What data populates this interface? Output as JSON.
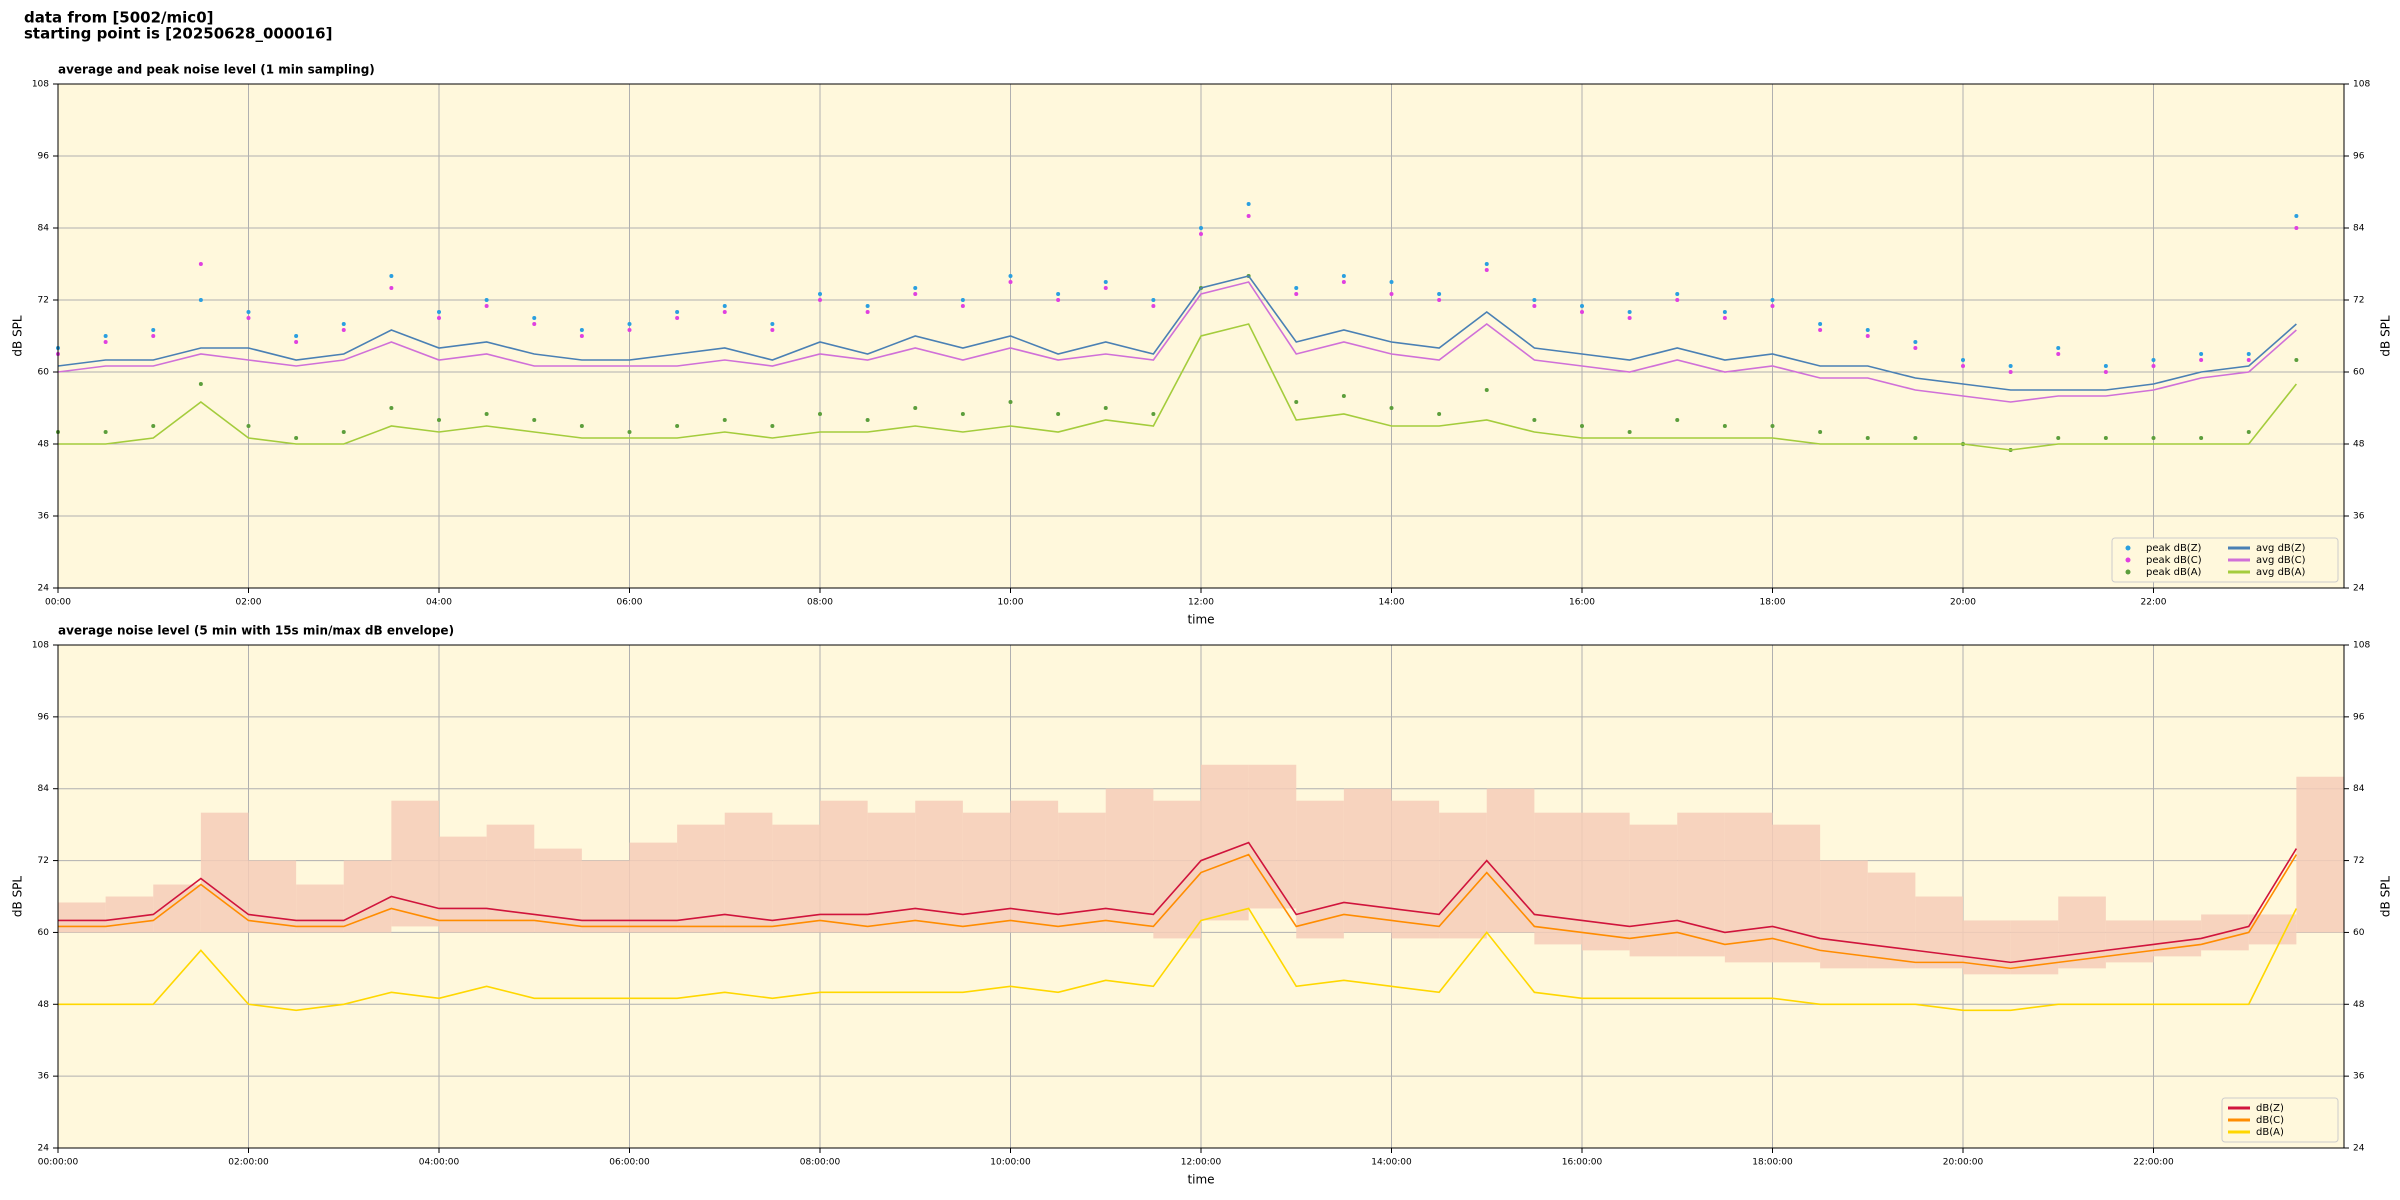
{
  "header": {
    "lines": [
      "data from [5002/mic0]",
      "starting point is [20250628_000016]"
    ]
  },
  "chart_data": [
    {
      "type": "line",
      "title": "average and peak noise level (1 min sampling)",
      "x_label": "time",
      "y_label": "dB SPL",
      "x": [
        0,
        0.5,
        1,
        1.5,
        2,
        2.5,
        3,
        3.5,
        4,
        4.5,
        5,
        5.5,
        6,
        6.5,
        7,
        7.5,
        8,
        8.5,
        9,
        9.5,
        10,
        10.5,
        11,
        11.5,
        12,
        12.5,
        13,
        13.5,
        14,
        14.5,
        15,
        15.5,
        16,
        16.5,
        17,
        17.5,
        18,
        18.5,
        19,
        19.5,
        20,
        20.5,
        21,
        21.5,
        22,
        22.5,
        23,
        23.5
      ],
      "xlim": [
        0,
        24
      ],
      "xticks": [
        {
          "value": 0,
          "label": "00:00"
        },
        {
          "value": 2,
          "label": "02:00"
        },
        {
          "value": 4,
          "label": "04:00"
        },
        {
          "value": 6,
          "label": "06:00"
        },
        {
          "value": 8,
          "label": "08:00"
        },
        {
          "value": 10,
          "label": "10:00"
        },
        {
          "value": 12,
          "label": "12:00"
        },
        {
          "value": 14,
          "label": "14:00"
        },
        {
          "value": 16,
          "label": "16:00"
        },
        {
          "value": 18,
          "label": "18:00"
        },
        {
          "value": 20,
          "label": "20:00"
        },
        {
          "value": 22,
          "label": "22:00"
        }
      ],
      "ylim": [
        24,
        108
      ],
      "yticks": [
        24,
        36,
        48,
        60,
        72,
        84,
        96,
        108
      ],
      "grid": true,
      "legend": "lower right",
      "legend_columns": 2,
      "series": [
        {
          "name": "peak dB(Z)",
          "color": "#2a9fe0",
          "style": "points",
          "values": [
            64,
            66,
            67,
            72,
            70,
            66,
            68,
            76,
            70,
            72,
            69,
            67,
            68,
            70,
            71,
            68,
            73,
            71,
            74,
            72,
            76,
            73,
            75,
            72,
            84,
            88,
            74,
            76,
            75,
            73,
            78,
            72,
            71,
            70,
            73,
            70,
            72,
            68,
            67,
            65,
            62,
            61,
            64,
            61,
            62,
            63,
            63,
            86
          ]
        },
        {
          "name": "peak dB(C)",
          "color": "#e040e0",
          "style": "points",
          "values": [
            63,
            65,
            66,
            78,
            69,
            65,
            67,
            74,
            69,
            71,
            68,
            66,
            67,
            69,
            70,
            67,
            72,
            70,
            73,
            71,
            75,
            72,
            74,
            71,
            83,
            86,
            73,
            75,
            73,
            72,
            77,
            71,
            70,
            69,
            72,
            69,
            71,
            67,
            66,
            64,
            61,
            60,
            63,
            60,
            61,
            62,
            62,
            84
          ]
        },
        {
          "name": "peak dB(A)",
          "color": "#5c9e3c",
          "style": "points",
          "values": [
            50,
            50,
            51,
            58,
            51,
            49,
            50,
            54,
            52,
            53,
            52,
            51,
            50,
            51,
            52,
            51,
            53,
            52,
            54,
            53,
            55,
            53,
            54,
            53,
            74,
            76,
            55,
            56,
            54,
            53,
            57,
            52,
            51,
            50,
            52,
            51,
            51,
            50,
            49,
            49,
            48,
            47,
            49,
            49,
            49,
            49,
            50,
            62
          ]
        },
        {
          "name": "avg dB(Z)",
          "color": "#4a80b4",
          "style": "line",
          "values": [
            61,
            62,
            62,
            64,
            64,
            62,
            63,
            67,
            64,
            65,
            63,
            62,
            62,
            63,
            64,
            62,
            65,
            63,
            66,
            64,
            66,
            63,
            65,
            63,
            74,
            76,
            65,
            67,
            65,
            64,
            70,
            64,
            63,
            62,
            64,
            62,
            63,
            61,
            61,
            59,
            58,
            57,
            57,
            57,
            58,
            60,
            61,
            68
          ]
        },
        {
          "name": "avg dB(C)",
          "color": "#d070d8",
          "style": "line",
          "values": [
            60,
            61,
            61,
            63,
            62,
            61,
            62,
            65,
            62,
            63,
            61,
            61,
            61,
            61,
            62,
            61,
            63,
            62,
            64,
            62,
            64,
            62,
            63,
            62,
            73,
            75,
            63,
            65,
            63,
            62,
            68,
            62,
            61,
            60,
            62,
            60,
            61,
            59,
            59,
            57,
            56,
            55,
            56,
            56,
            57,
            59,
            60,
            67
          ]
        },
        {
          "name": "avg dB(A)",
          "color": "#a4cc3c",
          "style": "line",
          "values": [
            48,
            48,
            49,
            55,
            49,
            48,
            48,
            51,
            50,
            51,
            50,
            49,
            49,
            49,
            50,
            49,
            50,
            50,
            51,
            50,
            51,
            50,
            52,
            51,
            66,
            68,
            52,
            53,
            51,
            51,
            52,
            50,
            49,
            49,
            49,
            49,
            49,
            48,
            48,
            48,
            48,
            47,
            48,
            48,
            48,
            48,
            48,
            58
          ]
        }
      ]
    },
    {
      "type": "line",
      "title": "average noise level (5 min with 15s min/max dB envelope)",
      "x_label": "time",
      "y_label": "dB SPL",
      "x": [
        0,
        0.5,
        1,
        1.5,
        2,
        2.5,
        3,
        3.5,
        4,
        4.5,
        5,
        5.5,
        6,
        6.5,
        7,
        7.5,
        8,
        8.5,
        9,
        9.5,
        10,
        10.5,
        11,
        11.5,
        12,
        12.5,
        13,
        13.5,
        14,
        14.5,
        15,
        15.5,
        16,
        16.5,
        17,
        17.5,
        18,
        18.5,
        19,
        19.5,
        20,
        20.5,
        21,
        21.5,
        22,
        22.5,
        23,
        23.5
      ],
      "xlim": [
        0,
        24
      ],
      "xticks": [
        {
          "value": 0,
          "label": "00:00:00"
        },
        {
          "value": 2,
          "label": "02:00:00"
        },
        {
          "value": 4,
          "label": "04:00:00"
        },
        {
          "value": 6,
          "label": "06:00:00"
        },
        {
          "value": 8,
          "label": "08:00:00"
        },
        {
          "value": 10,
          "label": "10:00:00"
        },
        {
          "value": 12,
          "label": "12:00:00"
        },
        {
          "value": 14,
          "label": "14:00:00"
        },
        {
          "value": 16,
          "label": "16:00:00"
        },
        {
          "value": 18,
          "label": "18:00:00"
        },
        {
          "value": 20,
          "label": "20:00:00"
        },
        {
          "value": 22,
          "label": "22:00:00"
        }
      ],
      "ylim": [
        24,
        108
      ],
      "yticks": [
        24,
        36,
        48,
        60,
        72,
        84,
        96,
        108
      ],
      "grid": true,
      "legend": "lower right",
      "legend_columns": 1,
      "band": {
        "color": "#f6cdb8",
        "high": [
          65,
          66,
          68,
          80,
          72,
          68,
          72,
          82,
          76,
          78,
          74,
          72,
          75,
          78,
          80,
          78,
          82,
          80,
          82,
          80,
          82,
          80,
          84,
          82,
          88,
          88,
          82,
          84,
          82,
          80,
          84,
          80,
          80,
          78,
          80,
          80,
          78,
          72,
          70,
          66,
          62,
          62,
          66,
          62,
          62,
          63,
          63,
          86
        ],
        "low": [
          60,
          60,
          60,
          60,
          60,
          60,
          60,
          61,
          60,
          60,
          60,
          60,
          60,
          60,
          60,
          60,
          60,
          60,
          60,
          60,
          60,
          60,
          60,
          59,
          62,
          64,
          59,
          60,
          59,
          59,
          60,
          58,
          57,
          56,
          56,
          55,
          55,
          54,
          54,
          54,
          53,
          53,
          54,
          55,
          56,
          57,
          58,
          60
        ]
      },
      "series": [
        {
          "name": "dB(Z)",
          "color": "#d0143c",
          "style": "line",
          "values": [
            62,
            62,
            63,
            69,
            63,
            62,
            62,
            66,
            64,
            64,
            63,
            62,
            62,
            62,
            63,
            62,
            63,
            63,
            64,
            63,
            64,
            63,
            64,
            63,
            72,
            75,
            63,
            65,
            64,
            63,
            72,
            63,
            62,
            61,
            62,
            60,
            61,
            59,
            58,
            57,
            56,
            55,
            56,
            57,
            58,
            59,
            61,
            74
          ]
        },
        {
          "name": "dB(C)",
          "color": "#ff8c00",
          "style": "line",
          "values": [
            61,
            61,
            62,
            68,
            62,
            61,
            61,
            64,
            62,
            62,
            62,
            61,
            61,
            61,
            61,
            61,
            62,
            61,
            62,
            61,
            62,
            61,
            62,
            61,
            70,
            73,
            61,
            63,
            62,
            61,
            70,
            61,
            60,
            59,
            60,
            58,
            59,
            57,
            56,
            55,
            55,
            54,
            55,
            56,
            57,
            58,
            60,
            73
          ]
        },
        {
          "name": "dB(A)",
          "color": "#ffd700",
          "style": "line",
          "values": [
            48,
            48,
            48,
            57,
            48,
            47,
            48,
            50,
            49,
            51,
            49,
            49,
            49,
            49,
            50,
            49,
            50,
            50,
            50,
            50,
            51,
            50,
            52,
            51,
            62,
            64,
            51,
            52,
            51,
            50,
            60,
            50,
            49,
            49,
            49,
            49,
            49,
            48,
            48,
            48,
            47,
            47,
            48,
            48,
            48,
            48,
            48,
            64
          ]
        }
      ]
    }
  ]
}
